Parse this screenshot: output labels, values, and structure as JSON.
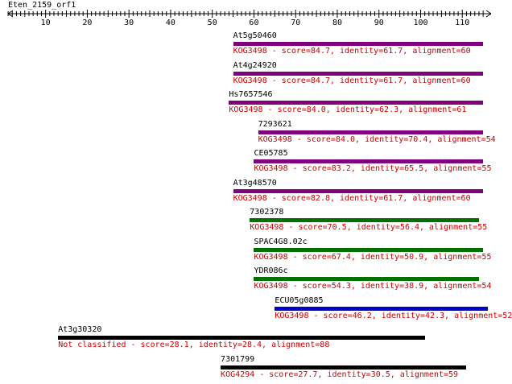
{
  "sequence_title": "Eten_2159_orf1",
  "ruler": {
    "ticks": [
      "10",
      "20",
      "30",
      "40",
      "50",
      "60",
      "70",
      "80",
      "90",
      "100",
      "110"
    ],
    "min": 0,
    "max": 115
  },
  "colors": {
    "desc_text": "#cc0000",
    "purple": "#800080",
    "green": "#007000",
    "blue": "#0000cc",
    "black": "#000000"
  },
  "hits": [
    {
      "name": "At5g50460",
      "description": "KOG3498 - score=84.7, identity=61.7, alignment=60",
      "start": 55,
      "end": 115,
      "color": "purple"
    },
    {
      "name": "At4g24920",
      "description": "KOG3498 - score=84.7, identity=61.7, alignment=60",
      "start": 55,
      "end": 115,
      "color": "purple"
    },
    {
      "name": "Hs7657546",
      "description": "KOG3498 - score=84.0, identity=62.3, alignment=61",
      "start": 54,
      "end": 115,
      "color": "purple"
    },
    {
      "name": "7293621",
      "description": "KOG3498 - score=84.0, identity=70.4, alignment=54",
      "start": 61,
      "end": 115,
      "color": "purple"
    },
    {
      "name": "CE05785",
      "description": "KOG3498 - score=83.2, identity=65.5, alignment=55",
      "start": 60,
      "end": 115,
      "color": "purple"
    },
    {
      "name": "At3g48570",
      "description": "KOG3498 - score=82.8, identity=61.7, alignment=60",
      "start": 55,
      "end": 115,
      "color": "purple"
    },
    {
      "name": "7302378",
      "description": "KOG3498 - score=70.5, identity=56.4, alignment=55",
      "start": 59,
      "end": 114,
      "color": "green"
    },
    {
      "name": "SPAC4G8.02c",
      "description": "KOG3498 - score=67.4, identity=50.9, alignment=55",
      "start": 60,
      "end": 115,
      "color": "green"
    },
    {
      "name": "YDR086c",
      "description": "KOG3498 - score=54.3, identity=38.9, alignment=54",
      "start": 60,
      "end": 114,
      "color": "green"
    },
    {
      "name": "ECU05g0885",
      "description": "KOG3498 - score=46.2, identity=42.3, alignment=52",
      "start": 65,
      "end": 117,
      "color": "blue"
    },
    {
      "name": "At3g30320",
      "description": "Not classified - score=28.1, identity=28.4, alignment=88",
      "start": 13,
      "end": 101,
      "color": "black"
    },
    {
      "name": "7301799",
      "description": "KOG4294 - score=27.7, identity=30.5, alignment=59",
      "start": 52,
      "end": 111,
      "color": "black"
    }
  ]
}
